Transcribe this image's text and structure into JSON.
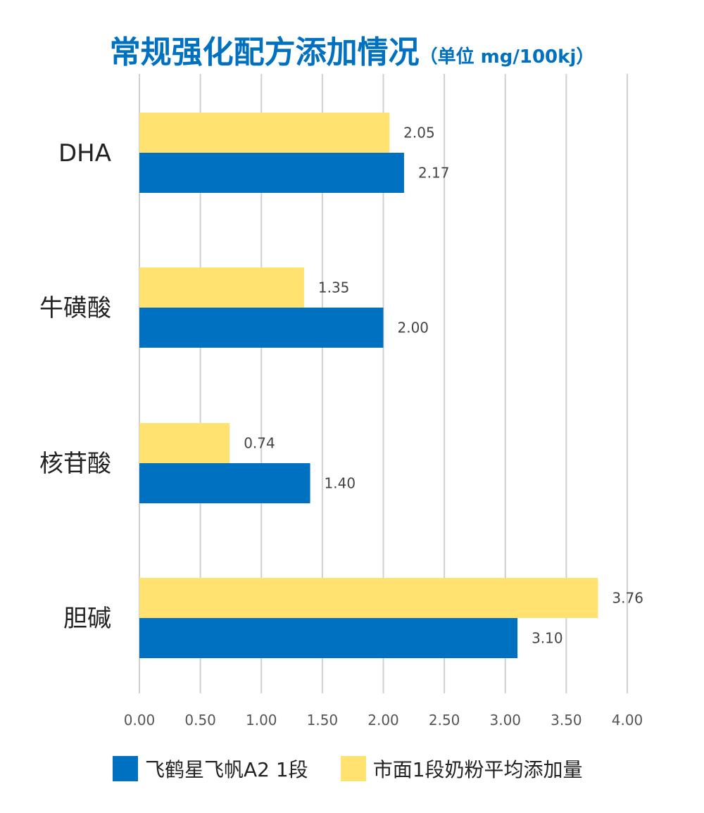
{
  "chart_data": {
    "type": "bar",
    "orientation": "horizontal",
    "title": "常规强化配方添加情况",
    "subtitle": "（单位 mg/100kj）",
    "categories": [
      "DHA",
      "牛磺酸",
      "核苷酸",
      "胆碱"
    ],
    "series": [
      {
        "name": "飞鹤星飞帆A2 1段",
        "color": "#0070c0",
        "values": [
          2.17,
          2.0,
          1.4,
          3.1
        ]
      },
      {
        "name": "市面1段奶粉平均添加量",
        "color": "#ffe270",
        "values": [
          2.05,
          1.35,
          0.74,
          3.76
        ]
      }
    ],
    "xlim": [
      0,
      4.0
    ],
    "xticks": [
      "0.00",
      "0.50",
      "1.00",
      "1.50",
      "2.00",
      "2.50",
      "3.00",
      "3.50",
      "4.00"
    ],
    "grid": true,
    "legend": "bottom"
  }
}
